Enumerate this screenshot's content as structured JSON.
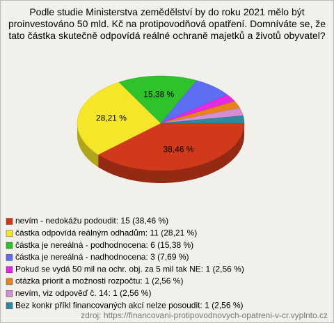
{
  "chart_data": {
    "type": "pie",
    "title": "Podle studie Ministerstva zemědělství by do roku 2021 mělo být proinvestováno 50 mld. Kč na protipovodňová opatření. Domníváte se, že tato částka skutečně odpovídá reálné ochraně majetků a životů obyvatel?",
    "categories": [
      "nevím - nedokážu podoudit: 15 (38,46 %)",
      "částka odpovídá reálným odhadům: 11 (28,21 %)",
      "částka je nereálná - podhodnocena: 6 (15,38 %)",
      "částka je nereálná - nadhodnocena: 3 (7,69 %)",
      "Pokud se vydá 50 mil na ochr. obj. za 5 mil tak NE: 1 (2,56 %)",
      "otázka priorit a možnosti rozpočtu: 1 (2,56 %)",
      "nevím, viz odpověď č. 14: 1 (2,56 %)",
      "Bez konkr příkl financovaných akcí nelze posoudit: 1 (2,56 %)"
    ],
    "values": [
      38.46,
      28.21,
      15.38,
      7.69,
      2.56,
      2.56,
      2.56,
      2.56
    ],
    "value_labels": [
      "38,46 %",
      "28,21 %",
      "15,38 %",
      null,
      null,
      null,
      null,
      null
    ],
    "colors": [
      "#d0391a",
      "#f5e62a",
      "#2fc22c",
      "#5d6ef2",
      "#e52ae2",
      "#e8821c",
      "#d48ed6",
      "#2c8a9c"
    ],
    "source": "zdroj: https://financovani-protipovodnovych-opatreni-v-cr.vyplnto.cz"
  }
}
